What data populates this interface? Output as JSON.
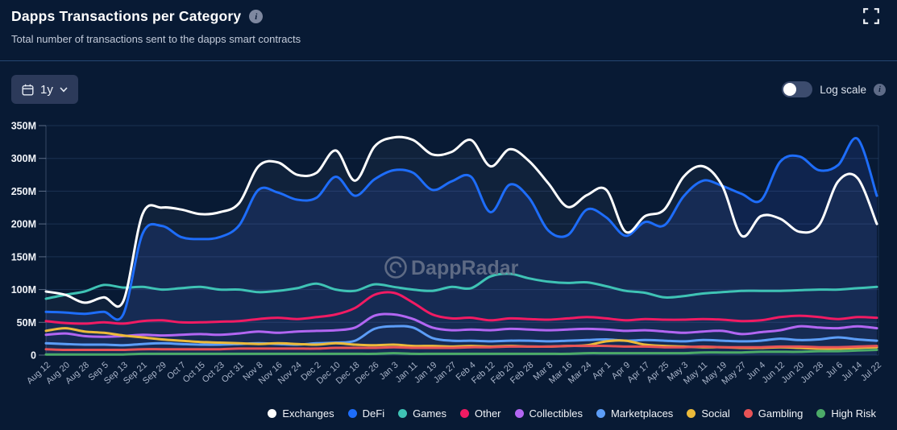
{
  "header": {
    "title": "Dapps Transactions per Category",
    "subtitle": "Total number of transactions sent to the dapps smart contracts"
  },
  "controls": {
    "time_range": {
      "label": "1y"
    },
    "log_scale": {
      "label": "Log scale",
      "enabled": false
    }
  },
  "watermark": {
    "text": "DappRadar"
  },
  "icons": [
    "calendar-icon",
    "chevron-down-icon",
    "info-icon",
    "fullscreen-icon",
    "dappradar-logo-icon"
  ],
  "chart_data": {
    "type": "line",
    "title": "Dapps Transactions per Category",
    "values_unit": "millions of transactions per week",
    "ylim": [
      0,
      350
    ],
    "y_tick_labels": [
      "0",
      "50M",
      "100M",
      "150M",
      "200M",
      "250M",
      "300M",
      "350M"
    ],
    "grid": true,
    "legend_position": "bottom",
    "x_labels": [
      "Aug 12",
      "Aug 20",
      "Aug 28",
      "Sep 5",
      "Sep 13",
      "Sep 21",
      "Sep 29",
      "Oct 7",
      "Oct 15",
      "Oct 23",
      "Oct 31",
      "Nov 8",
      "Nov 16",
      "Nov 24",
      "Dec 2",
      "Dec 10",
      "Dec 18",
      "Dec 26",
      "Jan 3",
      "Jan 11",
      "Jan 19",
      "Jan 27",
      "Feb 4",
      "Feb 12",
      "Feb 20",
      "Feb 28",
      "Mar 8",
      "Mar 16",
      "Mar 24",
      "Apr 1",
      "Apr 9",
      "Apr 17",
      "Apr 25",
      "May 3",
      "May 11",
      "May 19",
      "May 27",
      "Jun 4",
      "Jun 12",
      "Jun 20",
      "Jun 28",
      "Jul 6",
      "Jul 14",
      "Jul 22"
    ],
    "series": [
      {
        "name": "Exchanges",
        "color": "#ffffff",
        "fill": "rgba(255,255,255,0.035)",
        "values": [
          97,
          92,
          80,
          88,
          82,
          215,
          225,
          222,
          215,
          218,
          232,
          288,
          294,
          275,
          278,
          312,
          266,
          318,
          332,
          328,
          306,
          310,
          328,
          288,
          314,
          296,
          262,
          226,
          244,
          252,
          188,
          212,
          222,
          272,
          288,
          258,
          182,
          212,
          208,
          188,
          198,
          265,
          270,
          200
        ]
      },
      {
        "name": "DeFi",
        "color": "#1e6dfa",
        "fill": "rgba(70,110,255,0.13)",
        "values": [
          66,
          65,
          63,
          66,
          62,
          185,
          197,
          180,
          177,
          180,
          198,
          252,
          248,
          237,
          240,
          272,
          243,
          268,
          282,
          278,
          252,
          265,
          272,
          218,
          260,
          240,
          190,
          183,
          222,
          210,
          182,
          203,
          198,
          242,
          266,
          258,
          246,
          236,
          295,
          303,
          282,
          290,
          330,
          243
        ]
      },
      {
        "name": "Games",
        "color": "#3fc3b5",
        "fill": "none",
        "values": [
          86,
          92,
          97,
          107,
          103,
          104,
          100,
          102,
          104,
          100,
          100,
          96,
          98,
          102,
          109,
          100,
          98,
          108,
          104,
          100,
          98,
          104,
          102,
          120,
          124,
          117,
          112,
          110,
          111,
          105,
          98,
          95,
          88,
          90,
          94,
          96,
          98,
          98,
          98,
          99,
          100,
          100,
          102,
          104
        ]
      },
      {
        "name": "Other",
        "color": "#f11b63",
        "fill": "none",
        "values": [
          52,
          49,
          48,
          50,
          48,
          52,
          53,
          50,
          50,
          51,
          52,
          55,
          57,
          55,
          58,
          62,
          72,
          92,
          95,
          80,
          62,
          56,
          57,
          53,
          56,
          55,
          54,
          56,
          58,
          56,
          53,
          55,
          54,
          54,
          55,
          54,
          52,
          53,
          58,
          60,
          58,
          55,
          58,
          57
        ]
      },
      {
        "name": "Collectibles",
        "color": "#b266f2",
        "fill": "none",
        "values": [
          31,
          33,
          29,
          28,
          29,
          31,
          30,
          31,
          32,
          31,
          33,
          36,
          34,
          36,
          37,
          38,
          42,
          60,
          62,
          55,
          42,
          38,
          39,
          38,
          40,
          39,
          38,
          39,
          40,
          39,
          37,
          38,
          36,
          34,
          36,
          37,
          32,
          35,
          38,
          44,
          42,
          41,
          44,
          41
        ]
      },
      {
        "name": "Marketplaces",
        "color": "#5c9df7",
        "fill": "none",
        "values": [
          18,
          17,
          16,
          16,
          15,
          17,
          18,
          17,
          16,
          16,
          17,
          18,
          17,
          16,
          18,
          19,
          22,
          40,
          44,
          42,
          26,
          22,
          22,
          21,
          22,
          22,
          21,
          22,
          23,
          24,
          22,
          23,
          22,
          21,
          23,
          22,
          21,
          22,
          25,
          23,
          24,
          27,
          24,
          22
        ]
      },
      {
        "name": "Social",
        "color": "#ecba3a",
        "fill": "none",
        "values": [
          37,
          41,
          36,
          34,
          30,
          27,
          24,
          22,
          20,
          19,
          18,
          17,
          18,
          17,
          16,
          18,
          16,
          15,
          16,
          14,
          14,
          13,
          14,
          13,
          14,
          13,
          13,
          14,
          15,
          21,
          22,
          16,
          14,
          13,
          12,
          12,
          11,
          11,
          12,
          11,
          10,
          10,
          11,
          12
        ]
      },
      {
        "name": "Gambling",
        "color": "#e85356",
        "fill": "none",
        "values": [
          9,
          8,
          8,
          8,
          8,
          9,
          9,
          9,
          9,
          9,
          10,
          10,
          10,
          10,
          10,
          11,
          11,
          11,
          12,
          11,
          11,
          11,
          12,
          12,
          13,
          13,
          13,
          14,
          14,
          14,
          13,
          13,
          12,
          12,
          13,
          12,
          12,
          12,
          13,
          13,
          12,
          12,
          13,
          14
        ]
      },
      {
        "name": "High Risk",
        "color": "#4cab68",
        "fill": "none",
        "values": [
          1,
          1,
          1,
          1,
          1,
          2,
          2,
          2,
          2,
          2,
          2,
          2,
          2,
          2,
          2,
          2,
          2,
          2,
          3,
          2,
          2,
          2,
          2,
          2,
          2,
          2,
          2,
          2,
          3,
          3,
          3,
          3,
          3,
          3,
          4,
          4,
          4,
          5,
          5,
          5,
          6,
          6,
          7,
          8
        ]
      }
    ]
  }
}
